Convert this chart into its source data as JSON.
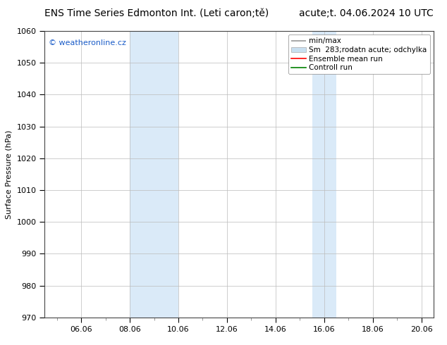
{
  "title_left": "ENS Time Series Edmonton Int. (Leti caron;tě)",
  "title_right": "acute;t. 04.06.2024 10 UTC",
  "ylabel": "Surface Pressure (hPa)",
  "ylim": [
    970,
    1060
  ],
  "yticks": [
    970,
    980,
    990,
    1000,
    1010,
    1020,
    1030,
    1040,
    1050,
    1060
  ],
  "xlim_days": [
    4.5,
    20.5
  ],
  "xtick_labels": [
    "06.06",
    "08.06",
    "10.06",
    "12.06",
    "14.06",
    "16.06",
    "18.06",
    "20.06"
  ],
  "xtick_positions": [
    6.0,
    8.0,
    10.0,
    12.0,
    14.0,
    16.0,
    18.0,
    20.0
  ],
  "shaded_regions": [
    {
      "xmin": 8.0,
      "xmax": 10.0
    },
    {
      "xmin": 15.5,
      "xmax": 16.5
    }
  ],
  "shaded_color": "#daeaf8",
  "background_color": "#ffffff",
  "watermark": "© weatheronline.cz",
  "watermark_color": "#1a5cc8",
  "legend_labels": [
    "min/max",
    "Sm  283;rodatn acute; odchylka",
    "Ensemble mean run",
    "Controll run"
  ],
  "legend_colors": [
    "#999999",
    "#c8dff0",
    "red",
    "green"
  ],
  "grid_color": "#bbbbbb",
  "minor_tick_color": "#888888",
  "axis_linewidth": 0.8,
  "figsize": [
    6.34,
    4.9
  ],
  "dpi": 100,
  "title_fontsize": 10,
  "legend_fontsize": 7.5,
  "ylabel_fontsize": 8,
  "tick_fontsize": 8,
  "watermark_fontsize": 8
}
